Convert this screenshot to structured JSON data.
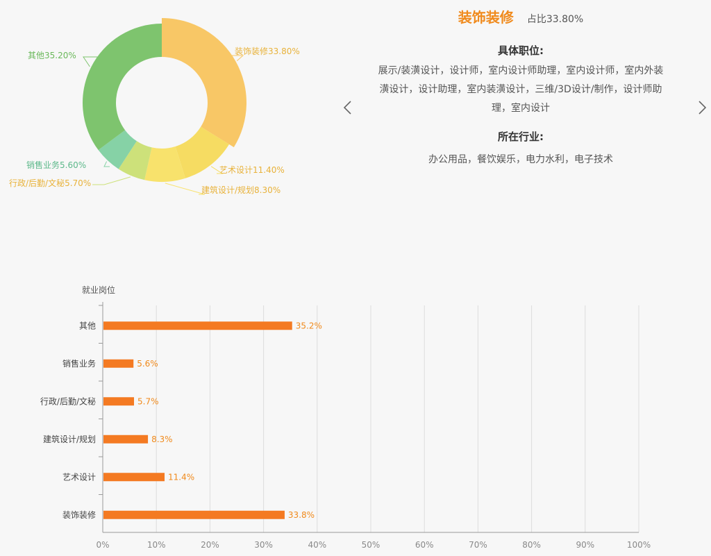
{
  "chart_data": [
    {
      "type": "pie",
      "variant": "donut",
      "slices": [
        {
          "label": "装饰装修",
          "value": 33.8,
          "label_text": "装饰装修33.80%",
          "color": "#f8c766"
        },
        {
          "label": "艺术设计",
          "value": 11.4,
          "label_text": "艺术设计11.40%",
          "color": "#f6dc62"
        },
        {
          "label": "建筑设计/规划",
          "value": 8.3,
          "label_text": "建筑设计/规划8.30%",
          "color": "#f8e26c"
        },
        {
          "label": "行政/后勤/文秘",
          "value": 5.7,
          "label_text": "行政/后勤/文秘5.70%",
          "color": "#cde17a"
        },
        {
          "label": "销售业务",
          "value": 5.6,
          "label_text": "销售业务5.60%",
          "color": "#86d2a6"
        },
        {
          "label": "其他",
          "value": 35.2,
          "label_text": "其他35.20%",
          "color": "#7ec46e"
        }
      ],
      "highlighted": "装饰装修"
    },
    {
      "type": "bar",
      "orientation": "horizontal",
      "ylabel": "就业岗位",
      "categories": [
        "其他",
        "销售业务",
        "行政/后勤/文秘",
        "建筑设计/规划",
        "艺术设计",
        "装饰装修"
      ],
      "values": [
        35.2,
        5.6,
        5.7,
        8.3,
        11.4,
        33.8
      ],
      "value_labels": [
        "35.2%",
        "5.6%",
        "5.7%",
        "8.3%",
        "11.4%",
        "33.8%"
      ],
      "xlim": [
        0,
        100
      ],
      "xticks": [
        0,
        10,
        20,
        30,
        40,
        50,
        60,
        70,
        80,
        90,
        100
      ],
      "xtick_labels": [
        "0%",
        "10%",
        "20%",
        "30%",
        "40%",
        "50%",
        "60%",
        "70%",
        "80%",
        "90%",
        "100%"
      ],
      "grid": true,
      "bar_color": "#f47a22",
      "label_color": "#f08a1c"
    }
  ],
  "detail": {
    "title": "装饰装修",
    "share": "占比33.80%",
    "positions_heading": "具体职位:",
    "positions_text": "展示/装潢设计，设计师，室内设计师助理，室内设计师，室内外装潢设计，设计助理，室内装潢设计，三维/3D设计/制作，设计师助理，室内设计",
    "industries_heading": "所在行业:",
    "industries_text": "办公用品，餐饮娱乐，电力水利，电子技术"
  },
  "nav": {
    "prev_icon": "chevron-left-icon",
    "next_icon": "chevron-right-icon"
  }
}
